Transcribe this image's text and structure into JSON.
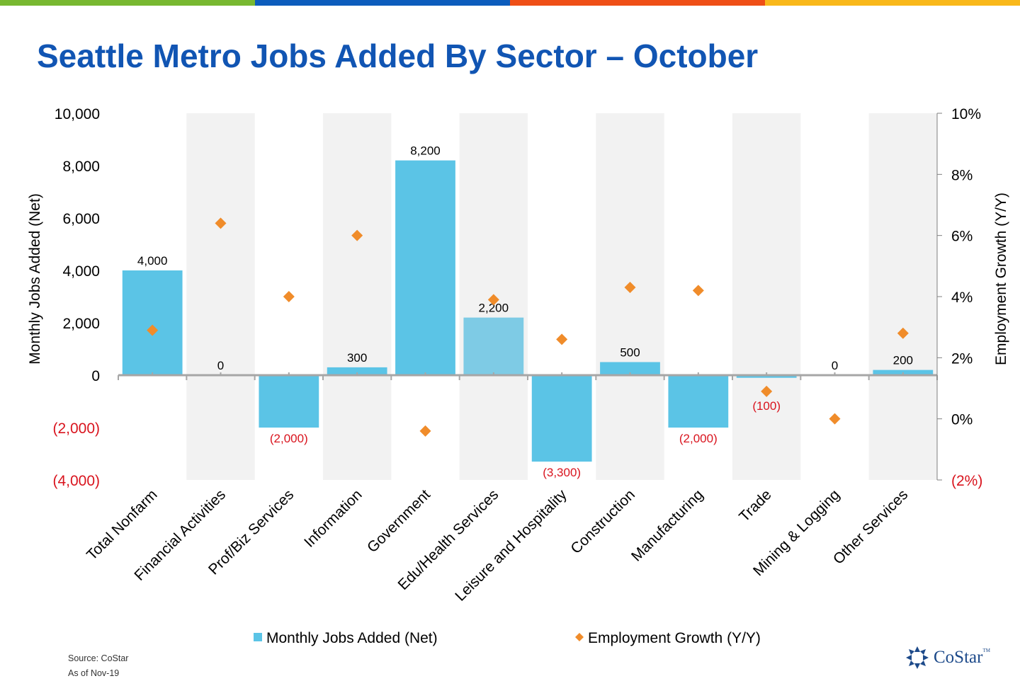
{
  "title": "Seattle Metro Jobs Added By Sector – October",
  "colors": {
    "top_bar": [
      "#78b831",
      "#0c5cbc",
      "#ef4f16",
      "#f9b81b"
    ],
    "bar": "#5bc4e6",
    "bar_alt": "#7ecbe5",
    "marker": "#f08c2a",
    "negative_label": "#d9141e",
    "title": "#1155b3",
    "band": "#f2f2f2"
  },
  "chart_data": {
    "type": "bar",
    "categories": [
      "Total Nonfarm",
      "Financial Activities",
      "Prof/Biz Services",
      "Information",
      "Government",
      "Edu/Health Services",
      "Leisure and Hospitality",
      "Construction",
      "Manufacturing",
      "Trade",
      "Mining & Logging",
      "Other Services"
    ],
    "series": [
      {
        "name": "Monthly Jobs Added (Net)",
        "type": "bar",
        "axis": "left",
        "values": [
          4000,
          0,
          -2000,
          300,
          8200,
          2200,
          -3300,
          500,
          -2000,
          -100,
          0,
          200
        ],
        "labels": [
          "4,000",
          "0",
          "(2,000)",
          "300",
          "8,200",
          "2,200",
          "(3,300)",
          "500",
          "(2,000)",
          "(100)",
          "0",
          "200"
        ]
      },
      {
        "name": "Employment Growth (Y/Y)",
        "type": "scatter",
        "axis": "right",
        "values": [
          2.9,
          6.4,
          4.0,
          6.0,
          -0.4,
          3.9,
          2.6,
          4.3,
          4.2,
          0.9,
          0.0,
          2.8
        ]
      }
    ],
    "ylabel": "Monthly Jobs Added (Net)",
    "y2label": "Employment Growth (Y/Y)",
    "ylim": [
      -4000,
      10000
    ],
    "y2lim": [
      -2,
      10
    ],
    "yticks": [
      10000,
      8000,
      6000,
      4000,
      2000,
      0,
      -2000,
      -4000
    ],
    "ytick_labels": [
      "10,000",
      "8,000",
      "6,000",
      "4,000",
      "2,000",
      "0",
      "(2,000)",
      "(4,000)"
    ],
    "y2ticks": [
      10,
      8,
      6,
      4,
      2,
      0,
      -2
    ],
    "y2tick_labels": [
      "10%",
      "8%",
      "6%",
      "4%",
      "2%",
      "0%",
      "(2%)"
    ],
    "legend_position": "bottom",
    "alternating_bands": true
  },
  "legend": {
    "bar_label": "Monthly Jobs Added (Net)",
    "marker_label": "Employment Growth (Y/Y)"
  },
  "source": {
    "line1": "Source: CoStar",
    "line2": "As of Nov-19"
  },
  "logo": {
    "text": "CoStar",
    "tm": "TM",
    "icon": "costar-star-icon"
  }
}
